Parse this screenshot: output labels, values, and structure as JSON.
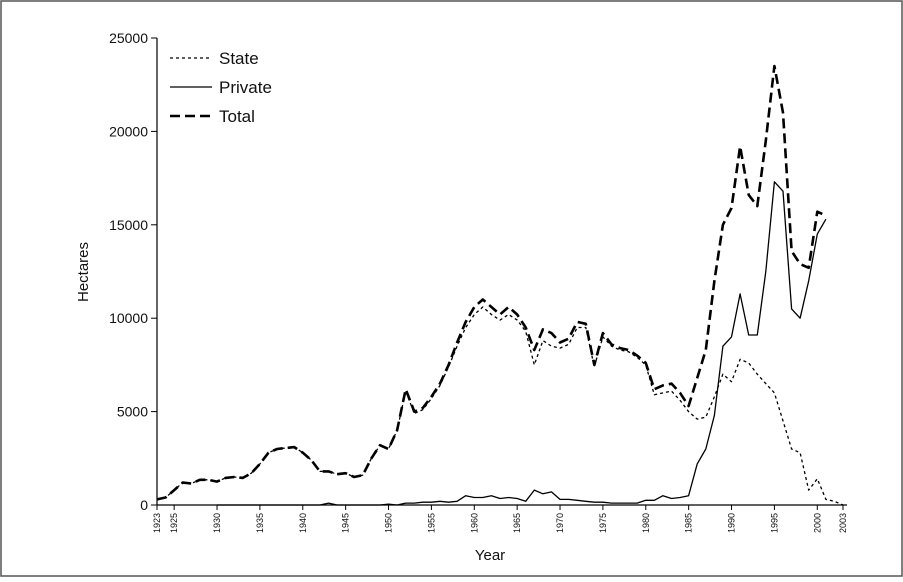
{
  "chart_data": {
    "type": "line",
    "x_label": "Year",
    "y_label": "Hectares",
    "x": [
      1923,
      1924,
      1925,
      1926,
      1927,
      1928,
      1929,
      1930,
      1931,
      1932,
      1933,
      1934,
      1935,
      1936,
      1937,
      1938,
      1939,
      1940,
      1941,
      1942,
      1943,
      1944,
      1945,
      1946,
      1947,
      1948,
      1949,
      1950,
      1951,
      1952,
      1953,
      1954,
      1955,
      1956,
      1957,
      1958,
      1959,
      1960,
      1961,
      1962,
      1963,
      1964,
      1965,
      1966,
      1967,
      1968,
      1969,
      1970,
      1971,
      1972,
      1973,
      1974,
      1975,
      1976,
      1977,
      1978,
      1979,
      1980,
      1981,
      1982,
      1983,
      1984,
      1985,
      1986,
      1987,
      1988,
      1989,
      1990,
      1991,
      1992,
      1993,
      1994,
      1995,
      1996,
      1997,
      1998,
      1999,
      2000,
      2001,
      2002,
      2003
    ],
    "series": [
      {
        "name": "State",
        "color": "#000000",
        "dash": "3,3",
        "width": 1.3,
        "values": [
          300,
          400,
          800,
          1200,
          1150,
          1350,
          1350,
          1250,
          1450,
          1500,
          1450,
          1700,
          2200,
          2800,
          3000,
          3050,
          3100,
          2800,
          2400,
          1800,
          1800,
          1650,
          1700,
          1500,
          1600,
          2500,
          3200,
          3000,
          4000,
          6100,
          4900,
          5100,
          5700,
          6400,
          7400,
          8500,
          9500,
          10200,
          10600,
          10200,
          9900,
          10200,
          9900,
          9300,
          7500,
          8800,
          8500,
          8400,
          8600,
          9500,
          9500,
          7400,
          9000,
          8500,
          8300,
          8200,
          7900,
          7500,
          5900,
          6000,
          6100,
          5600,
          5000,
          4600,
          4700,
          5800,
          7000,
          6600,
          7800,
          7600,
          7000,
          6500,
          6000,
          4500,
          3000,
          2800,
          800,
          1400,
          300,
          200,
          0
        ]
      },
      {
        "name": "Private",
        "color": "#000000",
        "dash": "none",
        "width": 1.3,
        "values": [
          null,
          null,
          null,
          null,
          null,
          null,
          null,
          0,
          0,
          0,
          0,
          0,
          0,
          0,
          0,
          0,
          0,
          0,
          0,
          0,
          100,
          0,
          0,
          0,
          0,
          0,
          0,
          50,
          0,
          100,
          100,
          150,
          150,
          200,
          150,
          200,
          500,
          400,
          400,
          500,
          350,
          400,
          350,
          200,
          800,
          600,
          700,
          300,
          300,
          250,
          200,
          150,
          150,
          100,
          100,
          100,
          100,
          250,
          250,
          500,
          350,
          400,
          500,
          2200,
          3000,
          4800,
          8500,
          9000,
          11300,
          9100,
          9100,
          12500,
          17300,
          16800,
          10500,
          10000,
          12000,
          14500,
          15300,
          null,
          null
        ]
      },
      {
        "name": "Total",
        "color": "#000000",
        "dash": "10,5",
        "width": 2.6,
        "values": [
          300,
          400,
          800,
          1200,
          1150,
          1350,
          1350,
          1250,
          1450,
          1500,
          1450,
          1700,
          2200,
          2800,
          3000,
          3050,
          3100,
          2800,
          2400,
          1800,
          1800,
          1650,
          1700,
          1500,
          1600,
          2500,
          3200,
          3000,
          4000,
          6200,
          5000,
          5200,
          5800,
          6500,
          7500,
          8700,
          9800,
          10600,
          11000,
          10600,
          10200,
          10600,
          10200,
          9500,
          8300,
          9400,
          9200,
          8700,
          8900,
          9800,
          9700,
          7500,
          9200,
          8600,
          8400,
          8300,
          8000,
          7600,
          6200,
          6400,
          6500,
          6000,
          5300,
          6800,
          8300,
          12000,
          15000,
          15900,
          19200,
          16600,
          16000,
          19500,
          23500,
          21000,
          13600,
          12900,
          12700,
          15700,
          15500,
          null,
          null
        ]
      }
    ],
    "xlim": [
      1923,
      2003
    ],
    "xticks": [
      1923,
      1925,
      1930,
      1935,
      1940,
      1945,
      1950,
      1955,
      1960,
      1965,
      1970,
      1975,
      1980,
      1985,
      1990,
      1995,
      2000,
      2003
    ],
    "ylim": [
      0,
      25000
    ],
    "yticks": [
      0,
      5000,
      10000,
      15000,
      20000,
      25000
    ],
    "legend": "top-left"
  }
}
